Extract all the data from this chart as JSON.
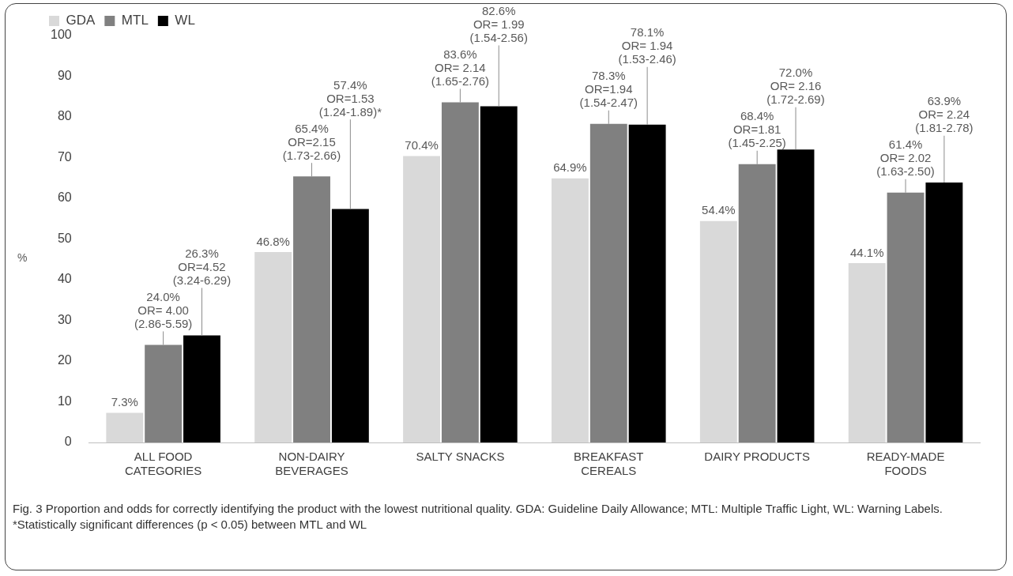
{
  "chart_data": {
    "type": "bar",
    "categories": [
      "ALL FOOD CATEGORIES",
      "NON-DAIRY BEVERAGES",
      "SALTY SNACKS",
      "BREAKFAST CEREALS",
      "DAIRY PRODUCTS",
      "READY-MADE FOODS"
    ],
    "series": [
      {
        "name": "GDA",
        "color": "#d9d9d9",
        "values": [
          7.3,
          46.8,
          70.4,
          64.9,
          54.4,
          44.1
        ],
        "value_labels": [
          "7.3%",
          "46.8%",
          "70.4%",
          "64.9%",
          "54.4%",
          "44.1%"
        ]
      },
      {
        "name": "MTL",
        "color": "#808080",
        "values": [
          24.0,
          65.4,
          83.6,
          78.3,
          68.4,
          61.4
        ],
        "value_labels": [
          "24.0%\nOR= 4.00\n(2.86-5.59)",
          "65.4%\nOR=2.15\n(1.73-2.66)",
          "83.6%\nOR= 2.14\n(1.65-2.76)",
          "78.3%\nOR=1.94\n(1.54-2.47)",
          "68.4%\nOR=1.81\n(1.45-2.25)",
          "61.4%\nOR= 2.02\n(1.63-2.50)"
        ]
      },
      {
        "name": "WL",
        "color": "#000000",
        "values": [
          26.3,
          57.4,
          82.6,
          78.1,
          72.0,
          63.9
        ],
        "value_labels": [
          "26.3%\nOR=4.52\n(3.24-6.29)",
          "57.4%\nOR=1.53\n(1.24-1.89)*",
          "82.6%\nOR= 1.99\n(1.54-2.56)",
          "78.1%\nOR= 1.94\n(1.53-2.46)",
          "72.0%\nOR= 2.16\n(1.72-2.69)",
          "63.9%\nOR= 2.24\n(1.81-2.78)"
        ]
      }
    ],
    "ylabel": "%",
    "ylim": [
      0,
      100
    ],
    "yticks": [
      0,
      10,
      20,
      30,
      40,
      50,
      60,
      70,
      80,
      90,
      100
    ],
    "grid": false,
    "legend": "top left",
    "annotations": [
      "Fig. 3 Proportion and odds for correctly identifying the product with the lowest nutritional quality. GDA: Guideline Daily Allowance; MTL: Multiple Traffic Light, WL: Warning Labels. *Statistically significant differences (p < 0.05) between MTL and WL"
    ]
  }
}
